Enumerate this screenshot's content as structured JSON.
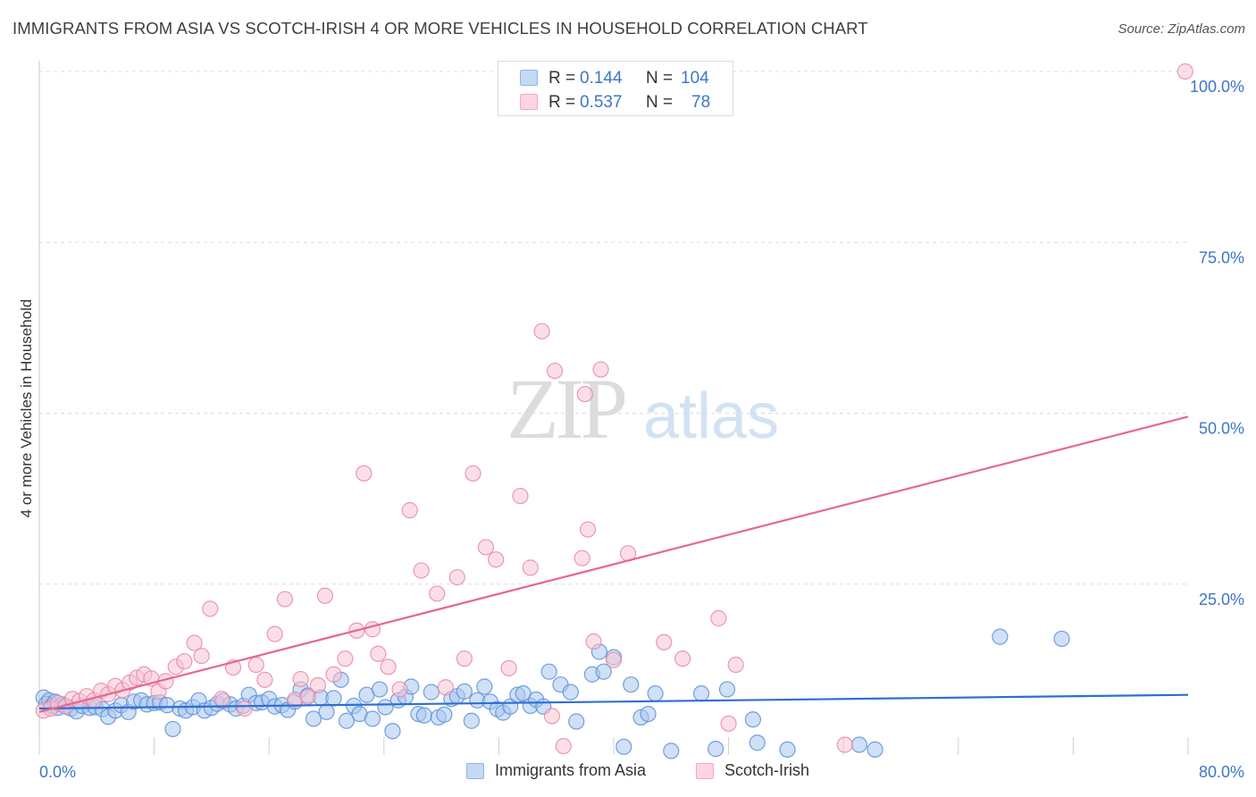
{
  "title": "IMMIGRANTS FROM ASIA VS SCOTCH-IRISH 4 OR MORE VEHICLES IN HOUSEHOLD CORRELATION CHART",
  "source": "Source: ZipAtlas.com",
  "watermark": {
    "zip": "ZIP",
    "atlas": "atlas"
  },
  "legend_top": {
    "rows": [
      {
        "r_label": "R =",
        "r_value": "0.144",
        "n_label": "N =",
        "n_value": "104",
        "color": "#8fb4e8"
      },
      {
        "r_label": "R =",
        "r_value": "0.537",
        "n_label": "N =",
        "n_value": "78",
        "color": "#f4a8c0"
      }
    ]
  },
  "legend_bottom": [
    {
      "label": "Immigrants from Asia",
      "color": "#8fb4e8"
    },
    {
      "label": "Scotch-Irish",
      "color": "#f4a8c0"
    }
  ],
  "chart_data": {
    "type": "scatter",
    "title": "IMMIGRANTS FROM ASIA VS SCOTCH-IRISH 4 OR MORE VEHICLES IN HOUSEHOLD CORRELATION CHART",
    "xlabel": "",
    "ylabel": "4 or more Vehicles in Household",
    "xlim": [
      0,
      80
    ],
    "ylim": [
      0,
      100
    ],
    "x_tick_labels": [
      "0.0%",
      "80.0%"
    ],
    "y_ticks": [
      25,
      50,
      75,
      100
    ],
    "y_tick_labels": [
      "25.0%",
      "50.0%",
      "75.0%",
      "100.0%"
    ],
    "grid": true,
    "legend_position": "top-center",
    "series": [
      {
        "name": "Immigrants from Asia",
        "color": "#5b8fd8",
        "fill": "#a9c6ee",
        "trend": {
          "x": [
            0,
            80
          ],
          "y": [
            6.8,
            8.8
          ],
          "color": "#2d6fd1"
        },
        "points": [
          [
            0.3,
            8.4
          ],
          [
            0.5,
            7.5
          ],
          [
            0.7,
            8.0
          ],
          [
            0.9,
            7.2
          ],
          [
            1.1,
            7.8
          ],
          [
            1.3,
            6.9
          ],
          [
            1.6,
            7.4
          ],
          [
            1.9,
            7.1
          ],
          [
            2.2,
            6.8
          ],
          [
            2.6,
            6.4
          ],
          [
            3.0,
            7.2
          ],
          [
            3.5,
            6.9
          ],
          [
            3.9,
            7.0
          ],
          [
            4.4,
            6.7
          ],
          [
            4.8,
            5.6
          ],
          [
            5.3,
            6.5
          ],
          [
            5.7,
            7.3
          ],
          [
            6.2,
            6.3
          ],
          [
            6.6,
            7.8
          ],
          [
            7.1,
            8.0
          ],
          [
            7.5,
            7.4
          ],
          [
            8.0,
            7.6
          ],
          [
            8.4,
            7.7
          ],
          [
            8.9,
            7.3
          ],
          [
            9.3,
            3.8
          ],
          [
            9.8,
            6.8
          ],
          [
            10.2,
            6.5
          ],
          [
            10.7,
            7.0
          ],
          [
            11.1,
            8.0
          ],
          [
            11.5,
            6.5
          ],
          [
            12.0,
            6.9
          ],
          [
            12.4,
            7.5
          ],
          [
            12.8,
            7.9
          ],
          [
            13.3,
            7.4
          ],
          [
            13.7,
            6.8
          ],
          [
            14.2,
            7.2
          ],
          [
            14.6,
            8.8
          ],
          [
            15.1,
            7.6
          ],
          [
            15.5,
            7.7
          ],
          [
            16.0,
            8.2
          ],
          [
            16.4,
            7.1
          ],
          [
            16.9,
            7.3
          ],
          [
            17.3,
            6.6
          ],
          [
            17.8,
            7.8
          ],
          [
            18.2,
            9.6
          ],
          [
            18.7,
            8.7
          ],
          [
            19.1,
            5.3
          ],
          [
            19.6,
            8.4
          ],
          [
            20.0,
            6.3
          ],
          [
            20.5,
            8.3
          ],
          [
            21.0,
            11.0
          ],
          [
            21.4,
            5.0
          ],
          [
            21.9,
            7.2
          ],
          [
            22.3,
            6.0
          ],
          [
            22.8,
            8.8
          ],
          [
            23.2,
            5.3
          ],
          [
            23.7,
            9.6
          ],
          [
            24.1,
            7.0
          ],
          [
            24.6,
            3.5
          ],
          [
            25.0,
            8.0
          ],
          [
            25.5,
            8.5
          ],
          [
            25.9,
            10.0
          ],
          [
            26.4,
            6.0
          ],
          [
            26.8,
            5.8
          ],
          [
            27.3,
            9.2
          ],
          [
            27.8,
            5.5
          ],
          [
            28.2,
            5.9
          ],
          [
            28.7,
            8.2
          ],
          [
            29.1,
            8.6
          ],
          [
            29.6,
            9.3
          ],
          [
            30.1,
            5.0
          ],
          [
            30.5,
            8.0
          ],
          [
            31.0,
            10.0
          ],
          [
            31.4,
            7.8
          ],
          [
            31.9,
            6.7
          ],
          [
            32.3,
            6.2
          ],
          [
            32.8,
            7.1
          ],
          [
            33.3,
            8.8
          ],
          [
            33.7,
            9.0
          ],
          [
            34.2,
            7.2
          ],
          [
            34.6,
            8.1
          ],
          [
            35.1,
            7.1
          ],
          [
            35.5,
            12.2
          ],
          [
            36.3,
            10.3
          ],
          [
            37.0,
            9.2
          ],
          [
            37.4,
            4.9
          ],
          [
            38.5,
            11.8
          ],
          [
            39.0,
            15.1
          ],
          [
            39.3,
            12.2
          ],
          [
            40.0,
            14.3
          ],
          [
            40.7,
            1.2
          ],
          [
            41.2,
            10.3
          ],
          [
            41.9,
            5.5
          ],
          [
            42.4,
            6.0
          ],
          [
            42.9,
            9.0
          ],
          [
            44.0,
            0.6
          ],
          [
            46.1,
            9.0
          ],
          [
            47.1,
            0.9
          ],
          [
            47.9,
            9.6
          ],
          [
            49.7,
            5.2
          ],
          [
            50.0,
            1.8
          ],
          [
            52.1,
            0.8
          ],
          [
            57.1,
            1.5
          ],
          [
            58.2,
            0.8
          ],
          [
            66.9,
            17.3
          ],
          [
            71.2,
            17.0
          ]
        ]
      },
      {
        "name": "Scotch-Irish",
        "color": "#ea86a6",
        "fill": "#f8c4d4",
        "trend": {
          "x": [
            0,
            80
          ],
          "y": [
            6.3,
            49.5
          ],
          "color": "#e8668f"
        },
        "points": [
          [
            0.3,
            6.5
          ],
          [
            0.8,
            6.8
          ],
          [
            1.3,
            7.6
          ],
          [
            1.8,
            7.1
          ],
          [
            2.3,
            8.2
          ],
          [
            2.8,
            7.9
          ],
          [
            3.3,
            8.6
          ],
          [
            3.8,
            8.0
          ],
          [
            4.3,
            9.4
          ],
          [
            4.8,
            8.9
          ],
          [
            5.3,
            10.1
          ],
          [
            5.8,
            9.5
          ],
          [
            6.3,
            10.6
          ],
          [
            6.8,
            11.3
          ],
          [
            7.3,
            11.8
          ],
          [
            7.8,
            11.2
          ],
          [
            8.3,
            9.3
          ],
          [
            8.8,
            10.8
          ],
          [
            9.5,
            12.9
          ],
          [
            10.1,
            13.7
          ],
          [
            10.8,
            16.4
          ],
          [
            11.3,
            14.5
          ],
          [
            11.9,
            21.4
          ],
          [
            12.7,
            8.2
          ],
          [
            13.5,
            12.8
          ],
          [
            14.3,
            6.8
          ],
          [
            15.1,
            13.2
          ],
          [
            15.7,
            11.0
          ],
          [
            16.4,
            17.7
          ],
          [
            17.1,
            22.8
          ],
          [
            17.8,
            8.1
          ],
          [
            18.2,
            11.1
          ],
          [
            18.7,
            8.5
          ],
          [
            19.4,
            10.2
          ],
          [
            19.9,
            23.3
          ],
          [
            20.5,
            11.8
          ],
          [
            21.3,
            14.1
          ],
          [
            22.1,
            18.2
          ],
          [
            22.6,
            41.2
          ],
          [
            23.2,
            18.4
          ],
          [
            23.6,
            14.8
          ],
          [
            24.3,
            12.9
          ],
          [
            25.1,
            9.6
          ],
          [
            25.8,
            35.8
          ],
          [
            26.6,
            27.0
          ],
          [
            27.7,
            23.6
          ],
          [
            28.3,
            9.9
          ],
          [
            29.1,
            26.0
          ],
          [
            29.6,
            14.1
          ],
          [
            30.2,
            41.2
          ],
          [
            31.1,
            30.4
          ],
          [
            31.8,
            28.6
          ],
          [
            32.7,
            12.7
          ],
          [
            33.5,
            37.9
          ],
          [
            34.2,
            27.4
          ],
          [
            35.0,
            62.0
          ],
          [
            35.7,
            5.7
          ],
          [
            35.9,
            56.2
          ],
          [
            36.5,
            1.3
          ],
          [
            37.8,
            28.8
          ],
          [
            38.0,
            52.8
          ],
          [
            38.2,
            33.0
          ],
          [
            38.6,
            16.6
          ],
          [
            39.1,
            56.4
          ],
          [
            40.0,
            13.9
          ],
          [
            41.0,
            29.5
          ],
          [
            43.5,
            16.5
          ],
          [
            44.8,
            14.1
          ],
          [
            47.3,
            20.0
          ],
          [
            48.0,
            4.6
          ],
          [
            48.5,
            13.2
          ],
          [
            56.1,
            1.5
          ],
          [
            79.8,
            100.0
          ]
        ]
      }
    ]
  }
}
